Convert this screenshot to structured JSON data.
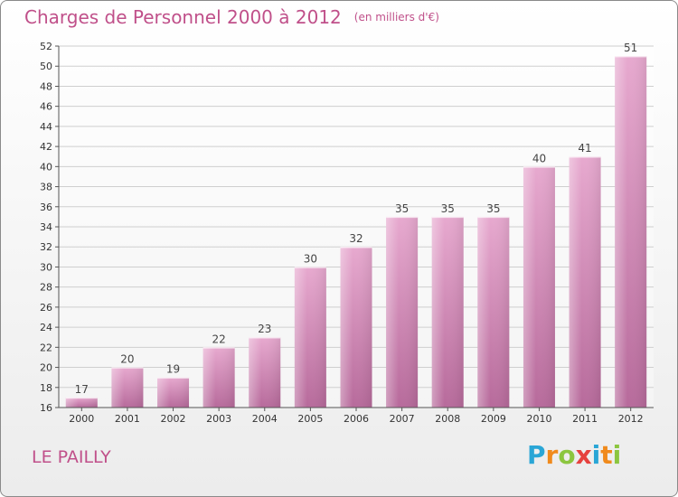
{
  "title": "Charges de Personnel 2000 à 2012",
  "unit": "(en milliers d'€)",
  "place": "LE PAILLY",
  "brand": {
    "text": "Proxiti",
    "letters": [
      "P",
      "r",
      "o",
      "x",
      "i",
      "t",
      "i"
    ],
    "colors": [
      "#2aa6d6",
      "#f08a1c",
      "#8cc63f",
      "#e6413e",
      "#2aa6d6",
      "#f08a1c",
      "#8cc63f"
    ]
  },
  "colors": {
    "bar": "#d88cbb",
    "accent": "#c0508a"
  },
  "chart_data": {
    "type": "bar",
    "categories": [
      "2000",
      "2001",
      "2002",
      "2003",
      "2004",
      "2005",
      "2006",
      "2007",
      "2008",
      "2009",
      "2010",
      "2011",
      "2012"
    ],
    "values": [
      17,
      20,
      19,
      22,
      23,
      30,
      32,
      35,
      35,
      35,
      40,
      41,
      51
    ],
    "ylim": [
      16,
      52
    ],
    "yticks": [
      16,
      18,
      20,
      22,
      24,
      26,
      28,
      30,
      32,
      34,
      36,
      38,
      40,
      42,
      44,
      46,
      48,
      50,
      52
    ],
    "grid": true
  }
}
